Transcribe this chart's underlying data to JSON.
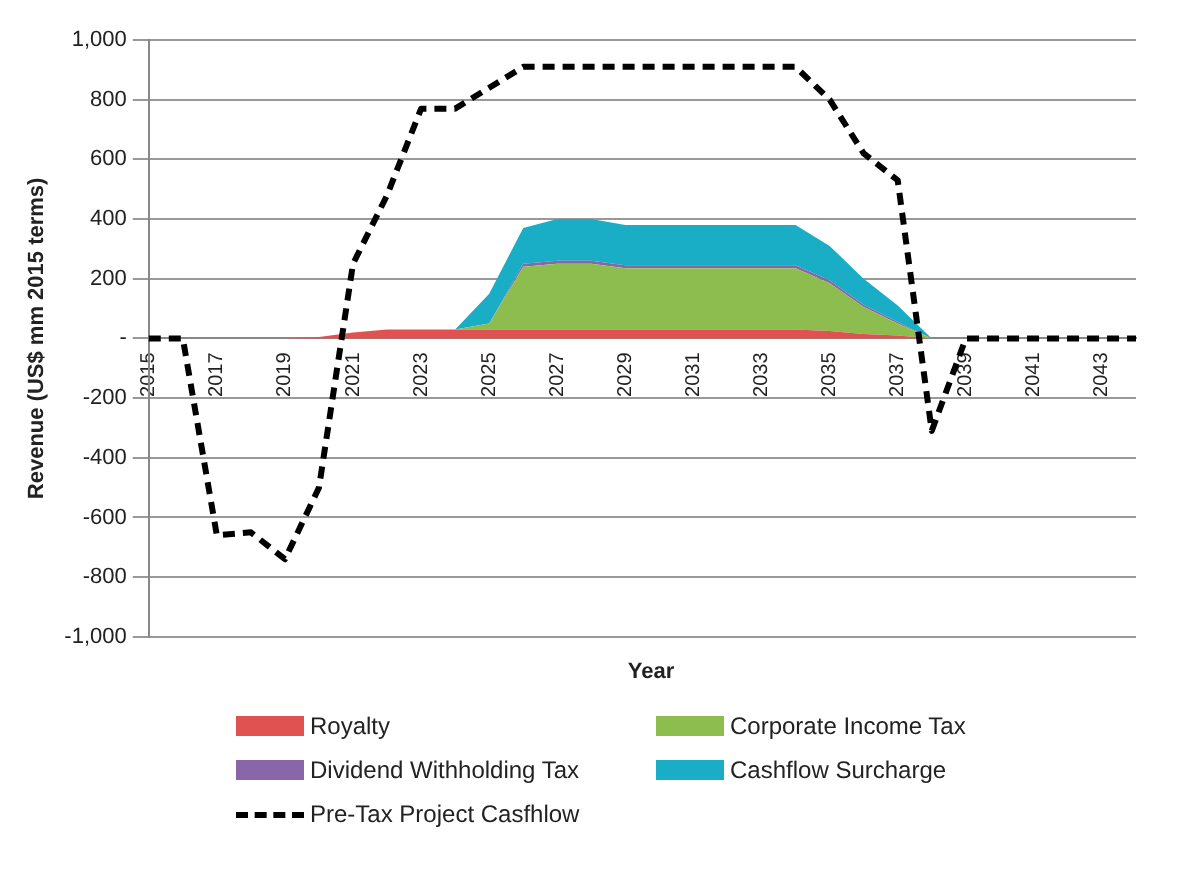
{
  "chart_data": {
    "type": "area",
    "stacked": true,
    "xlabel": "Year",
    "ylabel": "Revenue (US$ mm 2015 terms)",
    "categories": [
      "2015",
      null,
      "2017",
      null,
      "2019",
      null,
      "2021",
      null,
      "2023",
      null,
      "2025",
      null,
      "2027",
      null,
      "2029",
      null,
      "2031",
      null,
      "2033",
      null,
      "2035",
      null,
      "2037",
      null,
      "2039",
      null,
      "2041",
      null,
      "2043",
      null
    ],
    "series": [
      {
        "name": "Royalty",
        "color": "#e05252",
        "values": [
          0,
          0,
          0,
          0,
          0,
          5,
          20,
          30,
          30,
          30,
          30,
          30,
          30,
          30,
          30,
          30,
          30,
          30,
          30,
          30,
          25,
          15,
          10,
          0,
          0,
          0,
          0,
          0,
          0,
          0
        ]
      },
      {
        "name": "Corporate Income Tax",
        "color": "#8dbd4f",
        "values": [
          0,
          0,
          0,
          0,
          0,
          0,
          0,
          0,
          0,
          0,
          20,
          210,
          220,
          220,
          205,
          205,
          205,
          205,
          205,
          205,
          160,
          90,
          40,
          0,
          0,
          0,
          0,
          0,
          0,
          0
        ]
      },
      {
        "name": "Dividend Withholding Tax",
        "color": "#8866a8",
        "values": [
          0,
          0,
          0,
          0,
          0,
          0,
          0,
          0,
          0,
          0,
          0,
          10,
          10,
          10,
          10,
          10,
          10,
          10,
          10,
          10,
          10,
          8,
          5,
          0,
          0,
          0,
          0,
          0,
          0,
          0
        ]
      },
      {
        "name": "Cashflow Surcharge",
        "color": "#1aaec6",
        "values": [
          0,
          0,
          0,
          0,
          0,
          0,
          0,
          0,
          0,
          0,
          100,
          120,
          140,
          140,
          135,
          135,
          135,
          135,
          135,
          135,
          115,
          87,
          55,
          0,
          0,
          0,
          0,
          0,
          0,
          0
        ]
      },
      {
        "name": "Pre-Tax Project Casfhlow",
        "type": "line",
        "color": "#000000",
        "line_style": "dashed",
        "values": [
          0,
          0,
          -660,
          -650,
          -740,
          -500,
          250,
          480,
          770,
          770,
          840,
          910,
          910,
          910,
          910,
          910,
          910,
          910,
          910,
          910,
          800,
          620,
          530,
          -310,
          0,
          0,
          0,
          0,
          0,
          0
        ]
      }
    ],
    "ylim": [
      -1000,
      1000
    ],
    "yticks": [
      {
        "value": -1000,
        "label": "-1,000"
      },
      -800,
      -600,
      -400,
      -200,
      {
        "value": 0,
        "label": "-"
      },
      200,
      400,
      600,
      800,
      {
        "value": 1000,
        "label": "1,000"
      }
    ],
    "grid": "y",
    "legend": "bottom",
    "marker": "none"
  }
}
